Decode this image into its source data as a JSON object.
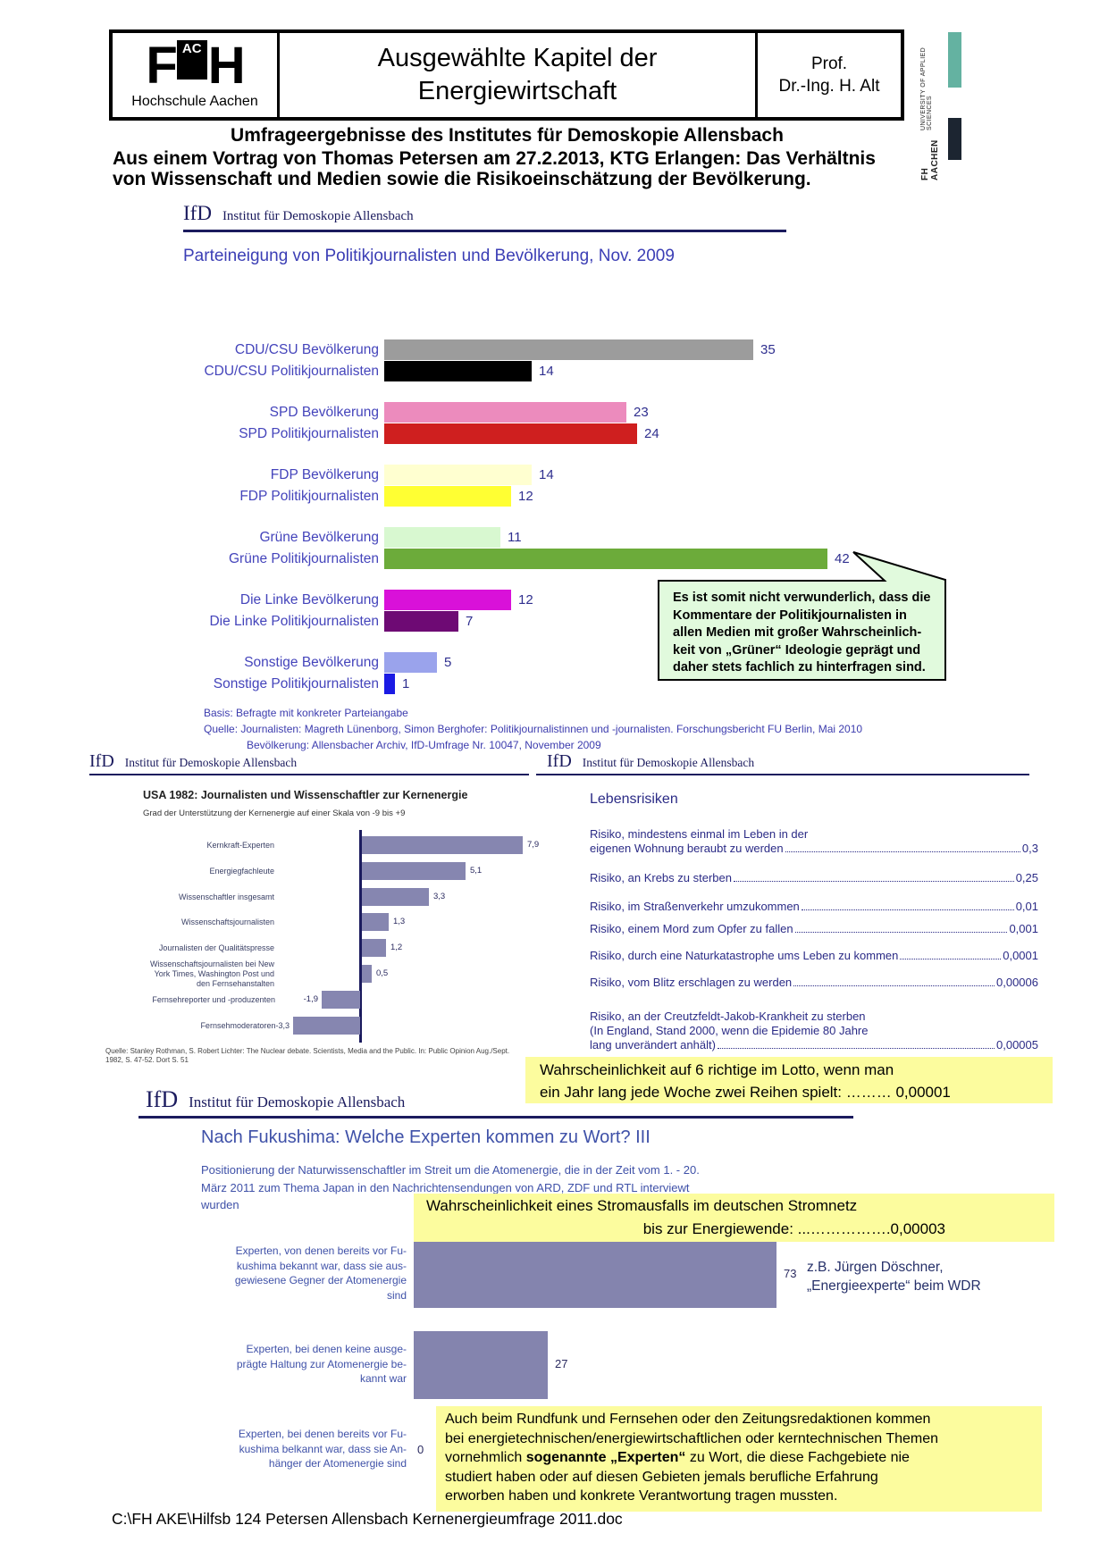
{
  "header": {
    "logo": {
      "f": "F",
      "ac": "AC",
      "h": "H",
      "caption": "Hochschule Aachen"
    },
    "title_line1": "Ausgewählte Kapitel der",
    "title_line2": "Energiewirtschaft",
    "prof_line1": "Prof.",
    "prof_line2": "Dr.-Ing. H. Alt"
  },
  "branding": {
    "name": "FH AACHEN",
    "subtitle": "UNIVERSITY OF APPLIED SCIENCES"
  },
  "intro": {
    "heading": "Umfrageergebnisse des Institutes für Demoskopie Allensbach",
    "lines_text": "Aus einem Vortrag von Thomas Petersen am 27.2.2013, KTG Erlangen: Das Verhältnis\nvon Wissenschaft und Medien sowie die Risikoeinschätzung der Bevölkerung."
  },
  "ifd": {
    "abbr": "IfD",
    "name": "Institut für Demoskopie Allensbach"
  },
  "party_chart": {
    "type": "bar",
    "title": "Parteineigung von Politikjournalisten und Bevölkerung, Nov. 2009",
    "rows": [
      {
        "label": "CDU/CSU Bevölkerung",
        "value": 35,
        "color": "#9c9c9c"
      },
      {
        "label": "CDU/CSU Politikjournalisten",
        "value": 14,
        "color": "#000000"
      },
      {
        "label": "SPD Bevölkerung",
        "value": 23,
        "color": "#ec8bbd"
      },
      {
        "label": "SPD Politikjournalisten",
        "value": 24,
        "color": "#cf1f1f"
      },
      {
        "label": "FDP Bevölkerung",
        "value": 14,
        "color": "#ffffd0"
      },
      {
        "label": "FDP Politikjournalisten",
        "value": 12,
        "color": "#ffff33"
      },
      {
        "label": "Grüne Bevölkerung",
        "value": 11,
        "color": "#d8f8d0"
      },
      {
        "label": "Grüne Politikjournalisten",
        "value": 42,
        "color": "#6cab3a"
      },
      {
        "label": "Die Linke Bevölkerung",
        "value": 12,
        "color": "#d911d9"
      },
      {
        "label": "Die Linke Politikjournalisten",
        "value": 7,
        "color": "#6e0a74"
      },
      {
        "label": "Sonstige Bevölkerung",
        "value": 5,
        "color": "#9aa3ec"
      },
      {
        "label": "Sonstige Politikjournalisten",
        "value": 1,
        "color": "#1b1be4"
      }
    ],
    "basis": "Basis: Befragte mit konkreter Parteiangabe",
    "quelle1": "Quelle: Journalisten: Magreth Lünenborg, Simon Berghofer: Politikjournalistinnen und -journalisten. Forschungsbericht FU Berlin, Mai 2010",
    "quelle2": "Bevölkerung: Allensbacher Archiv, IfD-Umfrage Nr. 10047, November 2009"
  },
  "callout": {
    "text": "Es ist somit nicht verwunderlich, dass die\nKommentare der Politikjournalisten in\nallen Medien  mit großer Wahrscheinlich-\nkeit von „Grüner“ Ideologie geprägt und\ndaher stets fachlich zu hinterfragen sind."
  },
  "usa_chart": {
    "type": "bar",
    "title": "USA 1982: Journalisten und Wissenschaftler zur Kernenergie",
    "subtitle": "Grad der Unterstützung der Kernenergie auf einer Skala von -9 bis +9",
    "axis_range": [
      -9,
      9
    ],
    "rows": [
      {
        "label": "Kernkraft-Experten",
        "value": 7.9,
        "display": "7,9"
      },
      {
        "label": "Energiegfachleute",
        "value": 5.1,
        "display": "5,1"
      },
      {
        "label": "Wissenschaftler insgesamt",
        "value": 3.3,
        "display": "3,3"
      },
      {
        "label": "Wissenschaftsjournalisten",
        "value": 1.3,
        "display": "1,3"
      },
      {
        "label": "Journalisten der Qualitätspresse",
        "value": 1.2,
        "display": "1,2"
      },
      {
        "label": "Wissenschaftsjournalisten bei New\nYork Times, Washington Post und\nden Fernsehanstalten",
        "value": 0.5,
        "display": "0,5"
      },
      {
        "label": "Fernsehreporter und -produzenten",
        "value": -1.9,
        "display": "-1,9"
      },
      {
        "label": "Fernsehmoderatoren-3,3",
        "value": -3.3,
        "display": ""
      }
    ],
    "quelle1": "Quelle: Stanley Rothman, S. Robert Lichter: The Nuclear debate. Scientists, Media and the Public. In: Public Opinion Aug./Sept.",
    "quelle2": "1982, S. 47-52. Dort S. 51"
  },
  "risks": {
    "title": "Lebensrisiken",
    "items": [
      {
        "lines": [
          "Risiko, mindestens einmal im Leben in der",
          "eigenen Wohnung beraubt zu werden"
        ],
        "value": "0,3"
      },
      {
        "lines": [
          "Risiko, an Krebs zu sterben"
        ],
        "value": "0,25"
      },
      {
        "lines": [
          "Risiko, im Straßenverkehr umzukommen"
        ],
        "value": "0,01"
      },
      {
        "lines": [
          "Risiko, einem Mord zum Opfer zu fallen"
        ],
        "value": "0,001"
      },
      {
        "lines": [
          "Risiko, durch eine Naturkatastrophe ums Leben zu kommen"
        ],
        "value": "0,0001"
      },
      {
        "lines": [
          "Risiko, vom Blitz erschlagen zu werden"
        ],
        "value": "0,00006"
      },
      {
        "lines": [
          "Risiko, an der Creutzfeldt-Jakob-Krankheit zu sterben",
          "(In England, Stand 2000, wenn die Epidemie 80 Jahre",
          "lang unverändert anhält)"
        ],
        "value": "0,00005"
      }
    ]
  },
  "lotto": {
    "line1": "Wahrscheinlichkeit auf 6 richtige im Lotto, wenn man",
    "line2": "ein Jahr lang jede Woche zwei Reihen spielt: ……… 0,00001"
  },
  "fukushima": {
    "type": "bar",
    "title": "Nach Fukushima: Welche Experten kommen zu Wort? III",
    "subtitle": "Positionierung der Naturwissenschaftler im Streit um die Atomenergie, die in der Zeit vom 1. - 20.\nMärz 2011 zum Thema Japan in den Nachrichtensendungen von ARD, ZDF und RTL interviewt\nwurden",
    "blackout_line1": "Wahrscheinlichkeit eines Stromausfalls im deutschen Stromnetz",
    "blackout_line2": "bis zur Energiewende: ...…………….0,00003",
    "bars": [
      {
        "label_lines": [
          "Experten, von denen bereits vor Fu-",
          "kushima bekannt war, dass sie aus-",
          "gewiesene Gegner der Atomenergie",
          "sind"
        ],
        "value": 73
      },
      {
        "label_lines": [
          "Experten, bei denen keine ausge-",
          "prägte Haltung zur Atomenergie be-",
          "kannt war"
        ],
        "value": 27
      },
      {
        "label_lines": [
          "Experten, bei denen bereits vor Fu-",
          "kushima belkannt war, dass sie An-",
          "hänger der Atomenergie sind"
        ],
        "value": 0
      }
    ],
    "annotation1": "z.B. Jürgen Döschner,",
    "annotation2": "„Energieexperte“ beim WDR"
  },
  "bottom_note": {
    "pre": "Auch beim Rundfunk und Fernsehen oder den Zeitungsredaktionen kommen\nbei energietechnischen/energiewirtschaftlichen oder kerntechnischen Themen\nvornehmlich ",
    "bold": "sogenannte „Experten“",
    "post": " zu Wort, die diese Fachgebiete nie\nstudiert haben oder auf diesen Gebieten jemals berufliche Erfahrung\nerworben haben und konkrete Verantwortung tragen mussten."
  },
  "footer": {
    "path": "C:\\FH AKE\\Hilfsb 124 Petersen Allensbach Kernenergieumfrage 2011.doc"
  },
  "colors": {
    "navy": "#1b1b5e",
    "title_blue": "#3b3eb5",
    "blue_label": "#4444bb",
    "blue_value": "#2f2f8f",
    "foot_blue": "#3c3cae",
    "risk_blue": "#2b2b86",
    "steel_blue": "#3f51a8",
    "yellow": "#fcfc9e",
    "green_bg": "#e1fadd",
    "usa_bar": "#8686b0",
    "fuku_bar": "#8484ae",
    "teal": "#64b2a1",
    "brand_dark": "#1c2531"
  }
}
